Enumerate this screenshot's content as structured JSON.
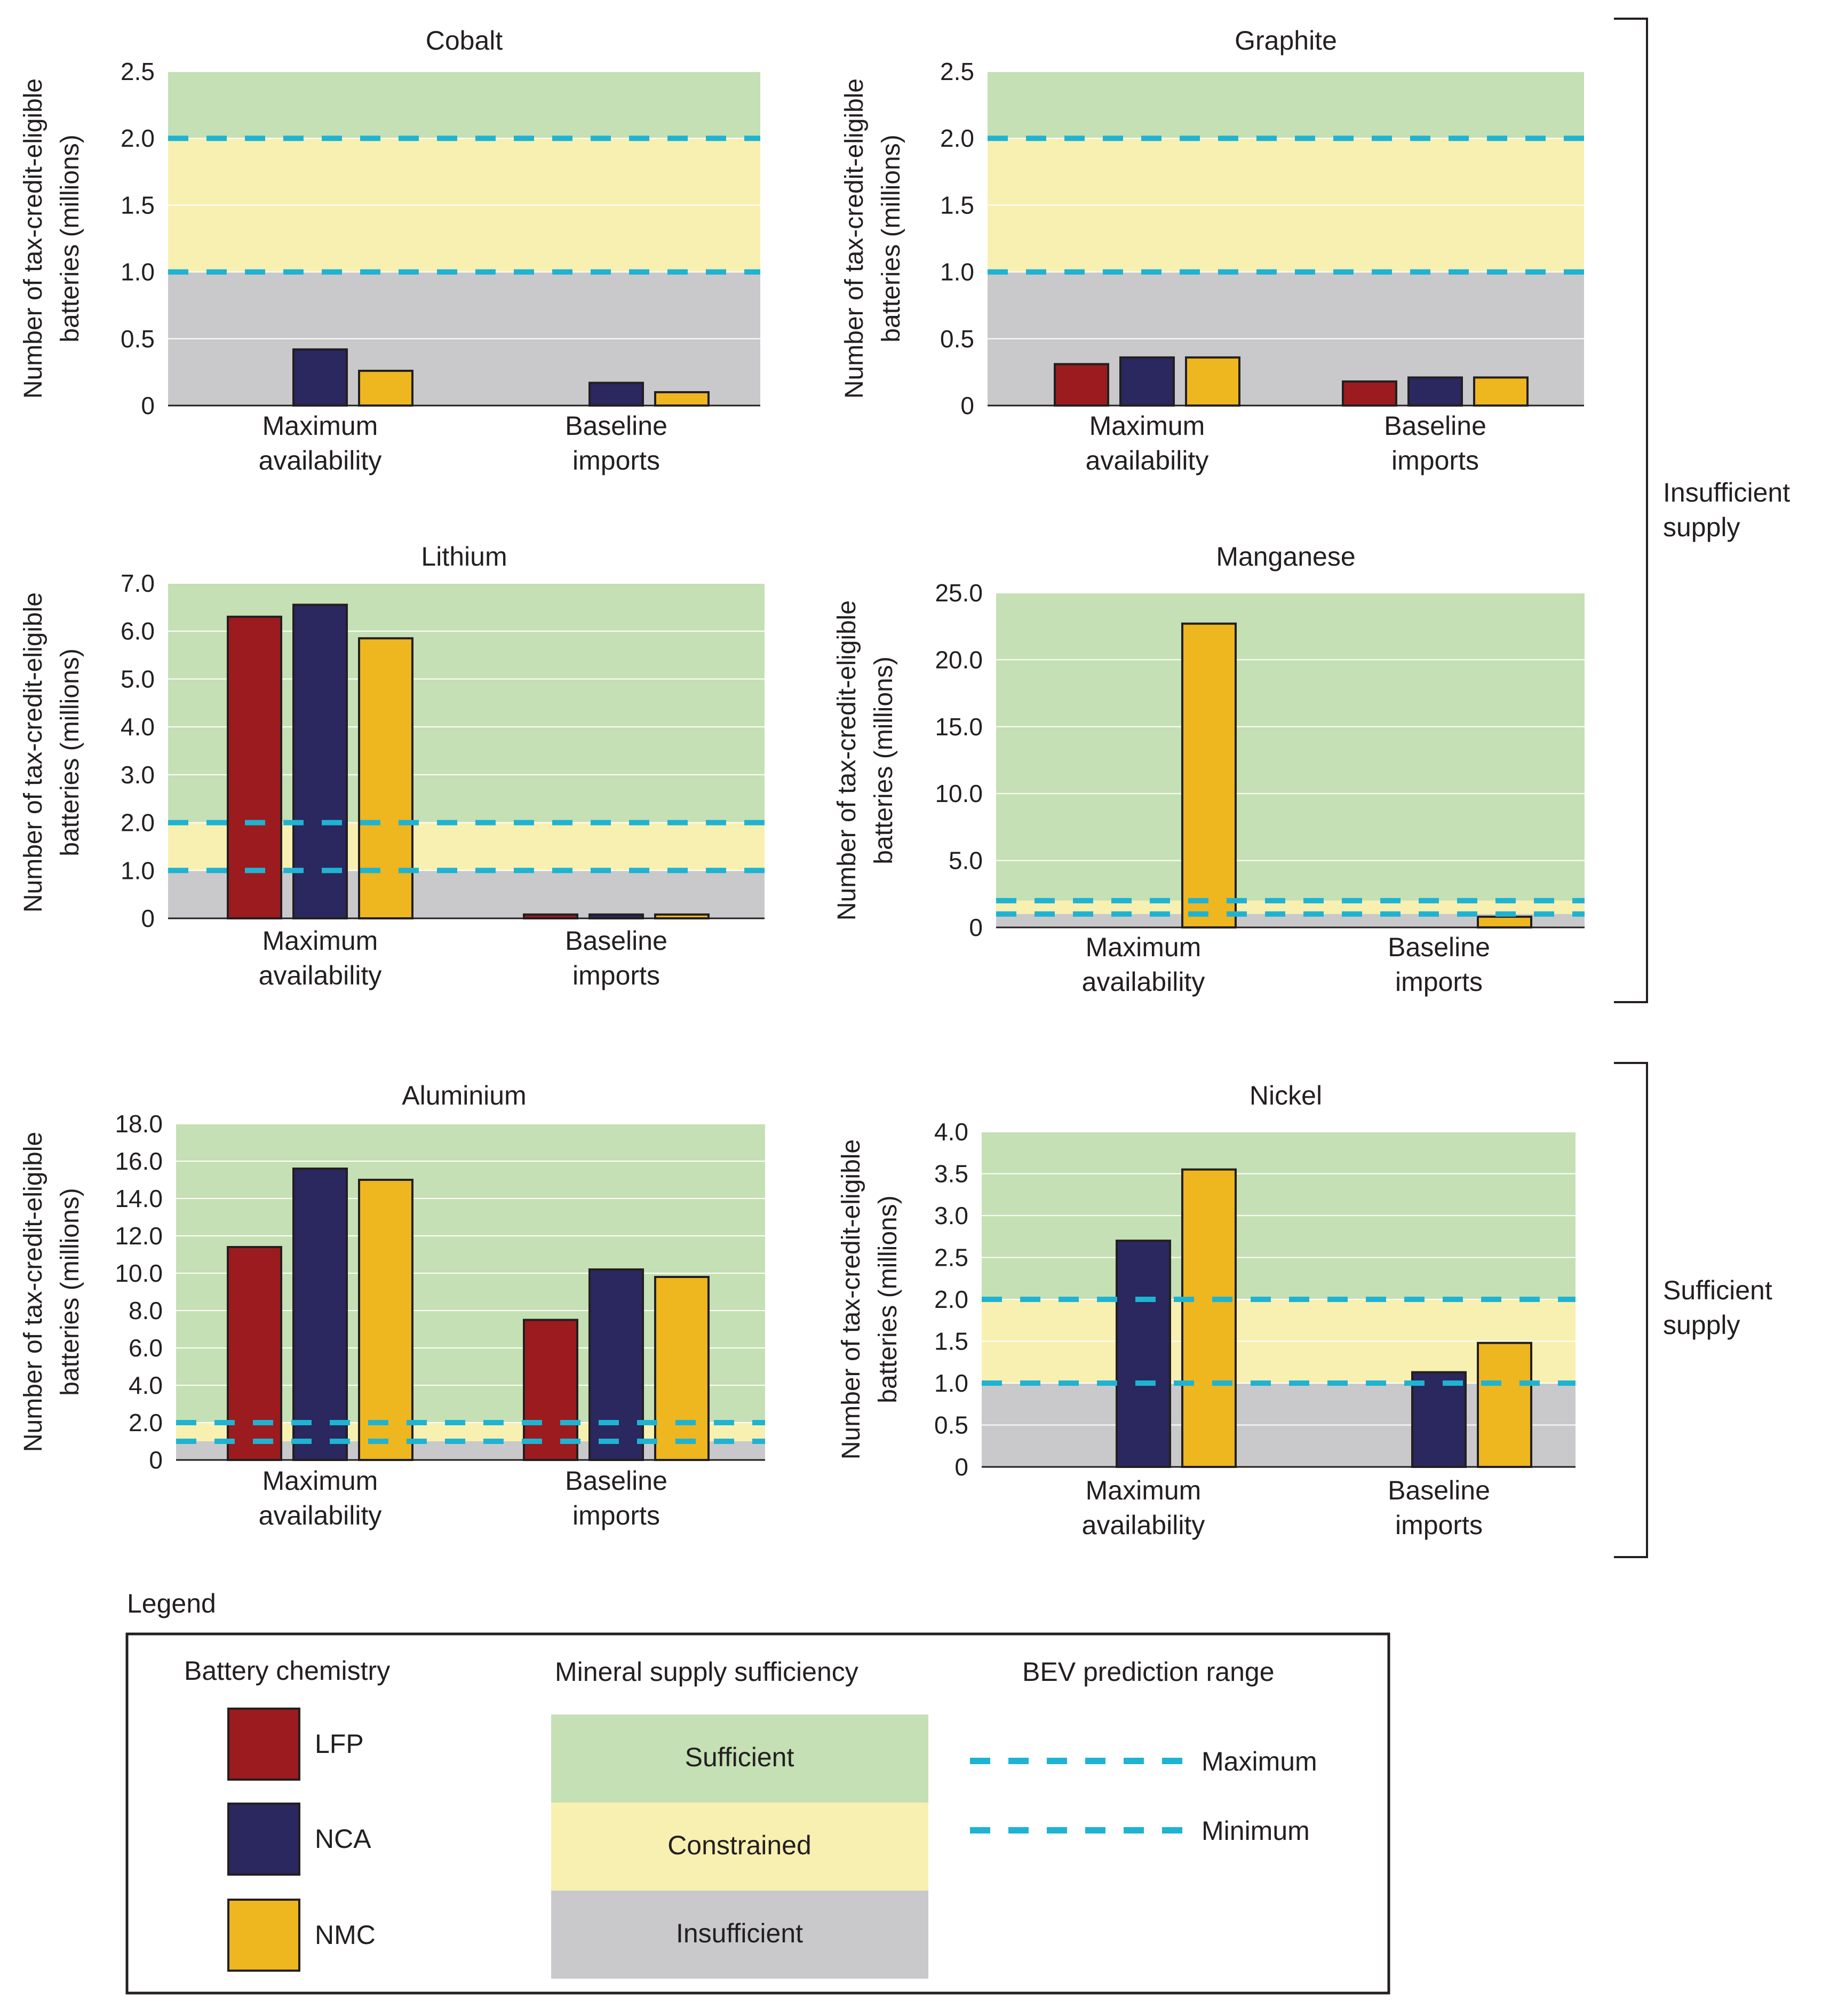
{
  "colors": {
    "LFP": "#9b1b1f",
    "NCA": "#2a285e",
    "NMC": "#eeb61f",
    "sufficient": "#c5e0b4",
    "constrained": "#f8f0b0",
    "insufficient": "#c9c9cb",
    "dash": "#1fb3d3",
    "outline": "#231f20"
  },
  "common": {
    "ylabel_line1": "Number of tax-credit-eligible",
    "ylabel_line2": "batteries (millions)",
    "groups": [
      {
        "line1": "Maximum",
        "line2": "availability"
      },
      {
        "line1": "Baseline",
        "line2": "imports"
      }
    ]
  },
  "chart_data": [
    {
      "type": "bar",
      "title": "Cobalt",
      "ylim": [
        0,
        2.5
      ],
      "yticks": [
        "0",
        "0.5",
        "1.0",
        "1.5",
        "2.0",
        "2.5"
      ],
      "categories": [
        "Maximum availability",
        "Baseline imports"
      ],
      "series": [
        {
          "name": "LFP",
          "values": [
            null,
            null
          ]
        },
        {
          "name": "NCA",
          "values": [
            0.42,
            0.17
          ]
        },
        {
          "name": "NMC",
          "values": [
            0.26,
            0.1
          ]
        }
      ],
      "bev_range": {
        "min": 1.0,
        "max": 2.0
      }
    },
    {
      "type": "bar",
      "title": "Graphite",
      "ylim": [
        0,
        2.5
      ],
      "yticks": [
        "0",
        "0.5",
        "1.0",
        "1.5",
        "2.0",
        "2.5"
      ],
      "categories": [
        "Maximum availability",
        "Baseline imports"
      ],
      "series": [
        {
          "name": "LFP",
          "values": [
            0.31,
            0.18
          ]
        },
        {
          "name": "NCA",
          "values": [
            0.36,
            0.21
          ]
        },
        {
          "name": "NMC",
          "values": [
            0.36,
            0.21
          ]
        }
      ],
      "bev_range": {
        "min": 1.0,
        "max": 2.0
      }
    },
    {
      "type": "bar",
      "title": "Lithium",
      "ylim": [
        0,
        7.0
      ],
      "yticks": [
        "0",
        "1.0",
        "2.0",
        "3.0",
        "4.0",
        "5.0",
        "6.0",
        "7.0"
      ],
      "categories": [
        "Maximum availability",
        "Baseline imports"
      ],
      "series": [
        {
          "name": "LFP",
          "values": [
            6.3,
            0.08
          ]
        },
        {
          "name": "NCA",
          "values": [
            6.55,
            0.08
          ]
        },
        {
          "name": "NMC",
          "values": [
            5.85,
            0.08
          ]
        }
      ],
      "bev_range": {
        "min": 1.0,
        "max": 2.0
      }
    },
    {
      "type": "bar",
      "title": "Manganese",
      "ylim": [
        0,
        25.0
      ],
      "yticks": [
        "0",
        "5.0",
        "10.0",
        "15.0",
        "20.0",
        "25.0"
      ],
      "categories": [
        "Maximum availability",
        "Baseline imports"
      ],
      "series": [
        {
          "name": "LFP",
          "values": [
            null,
            null
          ]
        },
        {
          "name": "NCA",
          "values": [
            null,
            null
          ]
        },
        {
          "name": "NMC",
          "values": [
            22.7,
            0.8
          ]
        }
      ],
      "bev_range": {
        "min": 1.0,
        "max": 2.0
      }
    },
    {
      "type": "bar",
      "title": "Aluminium",
      "ylim": [
        0,
        18.0
      ],
      "yticks": [
        "0",
        "2.0",
        "4.0",
        "6.0",
        "8.0",
        "10.0",
        "12.0",
        "14.0",
        "16.0",
        "18.0"
      ],
      "categories": [
        "Maximum availability",
        "Baseline imports"
      ],
      "series": [
        {
          "name": "LFP",
          "values": [
            11.4,
            7.5
          ]
        },
        {
          "name": "NCA",
          "values": [
            15.6,
            10.2
          ]
        },
        {
          "name": "NMC",
          "values": [
            15.0,
            9.8
          ]
        }
      ],
      "bev_range": {
        "min": 1.0,
        "max": 2.0
      }
    },
    {
      "type": "bar",
      "title": "Nickel",
      "ylim": [
        0,
        4.0
      ],
      "yticks": [
        "0",
        "0.5",
        "1.0",
        "1.5",
        "2.0",
        "2.5",
        "3.0",
        "3.5",
        "4.0"
      ],
      "categories": [
        "Maximum availability",
        "Baseline imports"
      ],
      "series": [
        {
          "name": "LFP",
          "values": [
            null,
            null
          ]
        },
        {
          "name": "NCA",
          "values": [
            2.7,
            1.13
          ]
        },
        {
          "name": "NMC",
          "values": [
            3.55,
            1.48
          ]
        }
      ],
      "bev_range": {
        "min": 1.0,
        "max": 2.0
      }
    }
  ],
  "brackets": {
    "insufficient": {
      "line1": "Insufficient",
      "line2": "supply"
    },
    "sufficient": {
      "line1": "Sufficient",
      "line2": "supply"
    }
  },
  "legend": {
    "title": "Legend",
    "chemistry_title": "Battery chemistry",
    "chemistry": [
      "LFP",
      "NCA",
      "NMC"
    ],
    "supply_title": "Mineral supply sufficiency",
    "supply": [
      "Sufficient",
      "Constrained",
      "Insufficient"
    ],
    "bev_title": "BEV prediction range",
    "bev": [
      "Maximum",
      "Minimum"
    ]
  }
}
